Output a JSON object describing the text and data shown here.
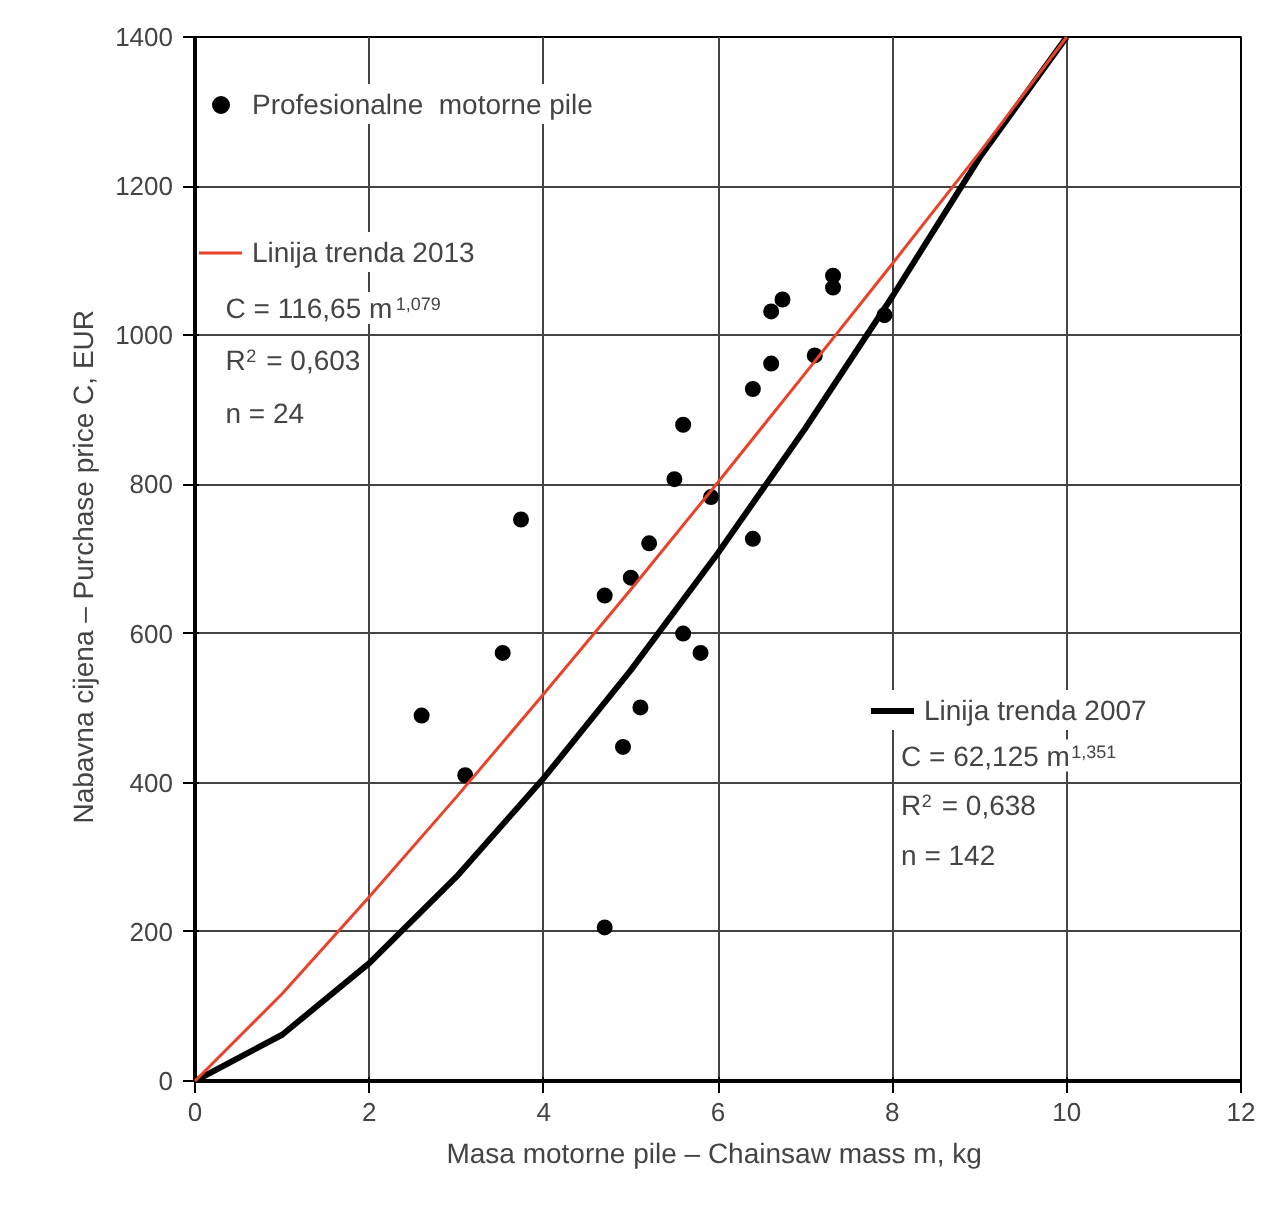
{
  "chart_data": {
    "type": "scatter",
    "xlabel": "Masa motorne pile – Chainsaw mass  m, kg",
    "ylabel": "Nabavna cijena – Purchase price  C,  EUR",
    "xlim": [
      0,
      12
    ],
    "xticks": [
      0,
      2,
      4,
      6,
      8,
      10,
      12
    ],
    "ylim": [
      0,
      1400
    ],
    "yticks": [
      0,
      200,
      400,
      600,
      800,
      1000,
      1200,
      1400
    ],
    "grid": true,
    "legend": "top left",
    "annotations": [
      "C = 116,65 m$^{1,079}$",
      "R$^{2}$ = 0,603",
      "n = 24",
      "C = 62,125 m$^{1,351}$",
      "R$^{2}$ = 0,638",
      "n = 142"
    ],
    "series": [
      {
        "name": "Profesionalne  motorne pile",
        "marker": "circle",
        "color": "#000000",
        "x": [
          2.6,
          3.1,
          3.53,
          3.74,
          4.7,
          5.0,
          5.21,
          5.5,
          5.6,
          5.92,
          5.6,
          5.8,
          5.11,
          4.91,
          4.7,
          6.4,
          6.4,
          6.61,
          6.61,
          6.74,
          7.11,
          7.32,
          7.32,
          7.91
        ],
        "values": [
          490,
          410,
          574,
          753,
          651,
          675,
          721,
          807,
          880,
          783,
          600,
          574,
          501,
          448,
          206,
          928,
          727,
          962,
          1032,
          1048,
          973,
          1080,
          1064,
          1027
        ]
      },
      {
        "name": "Linija trenda 2013",
        "type": "line",
        "color": "#e8432a",
        "x": [
          0,
          1,
          2,
          3,
          4,
          5,
          6,
          7,
          8,
          9,
          10
        ],
        "values": [
          0,
          117,
          247,
          381,
          519,
          659,
          803,
          949,
          1096,
          1245,
          1400
        ]
      },
      {
        "name": "Linija trenda 2007",
        "type": "line",
        "color": "#000000",
        "x": [
          0,
          1,
          2,
          3,
          4,
          5,
          6,
          7,
          8,
          9,
          10
        ],
        "values": [
          0,
          62,
          158,
          274,
          406,
          551,
          708,
          875,
          1052,
          1238,
          1400
        ]
      }
    ]
  }
}
